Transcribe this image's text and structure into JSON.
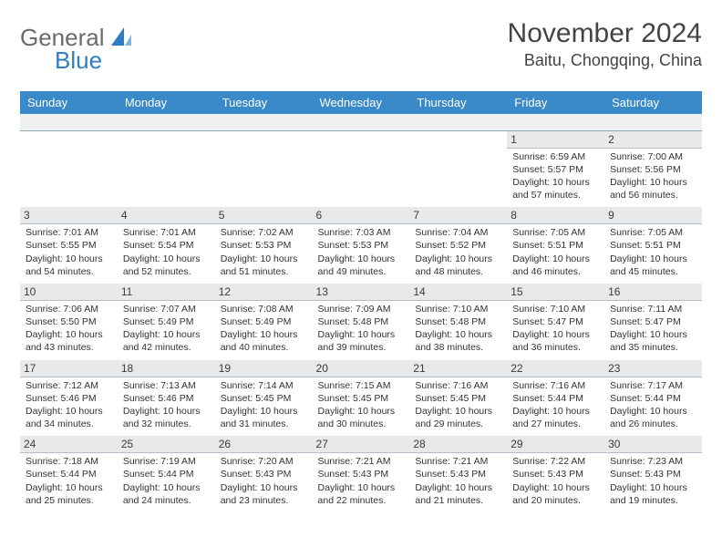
{
  "logo": {
    "general": "General",
    "blue": "Blue"
  },
  "colors": {
    "header_bg": "#3a8ac9",
    "header_fg": "#ffffff",
    "daynum_bg": "#e7e9eb",
    "spacer_bg": "#eef0f2",
    "border": "#a8b4c0",
    "logo_gray": "#6b6b6b",
    "logo_blue": "#2f7ec2",
    "text": "#333333"
  },
  "title": "November 2024",
  "location": "Baitu, Chongqing, China",
  "weekdays": [
    "Sunday",
    "Monday",
    "Tuesday",
    "Wednesday",
    "Thursday",
    "Friday",
    "Saturday"
  ],
  "weeks": [
    [
      null,
      null,
      null,
      null,
      null,
      {
        "n": "1",
        "sunrise": "Sunrise: 6:59 AM",
        "sunset": "Sunset: 5:57 PM",
        "d1": "Daylight: 10 hours",
        "d2": "and 57 minutes."
      },
      {
        "n": "2",
        "sunrise": "Sunrise: 7:00 AM",
        "sunset": "Sunset: 5:56 PM",
        "d1": "Daylight: 10 hours",
        "d2": "and 56 minutes."
      }
    ],
    [
      {
        "n": "3",
        "sunrise": "Sunrise: 7:01 AM",
        "sunset": "Sunset: 5:55 PM",
        "d1": "Daylight: 10 hours",
        "d2": "and 54 minutes."
      },
      {
        "n": "4",
        "sunrise": "Sunrise: 7:01 AM",
        "sunset": "Sunset: 5:54 PM",
        "d1": "Daylight: 10 hours",
        "d2": "and 52 minutes."
      },
      {
        "n": "5",
        "sunrise": "Sunrise: 7:02 AM",
        "sunset": "Sunset: 5:53 PM",
        "d1": "Daylight: 10 hours",
        "d2": "and 51 minutes."
      },
      {
        "n": "6",
        "sunrise": "Sunrise: 7:03 AM",
        "sunset": "Sunset: 5:53 PM",
        "d1": "Daylight: 10 hours",
        "d2": "and 49 minutes."
      },
      {
        "n": "7",
        "sunrise": "Sunrise: 7:04 AM",
        "sunset": "Sunset: 5:52 PM",
        "d1": "Daylight: 10 hours",
        "d2": "and 48 minutes."
      },
      {
        "n": "8",
        "sunrise": "Sunrise: 7:05 AM",
        "sunset": "Sunset: 5:51 PM",
        "d1": "Daylight: 10 hours",
        "d2": "and 46 minutes."
      },
      {
        "n": "9",
        "sunrise": "Sunrise: 7:05 AM",
        "sunset": "Sunset: 5:51 PM",
        "d1": "Daylight: 10 hours",
        "d2": "and 45 minutes."
      }
    ],
    [
      {
        "n": "10",
        "sunrise": "Sunrise: 7:06 AM",
        "sunset": "Sunset: 5:50 PM",
        "d1": "Daylight: 10 hours",
        "d2": "and 43 minutes."
      },
      {
        "n": "11",
        "sunrise": "Sunrise: 7:07 AM",
        "sunset": "Sunset: 5:49 PM",
        "d1": "Daylight: 10 hours",
        "d2": "and 42 minutes."
      },
      {
        "n": "12",
        "sunrise": "Sunrise: 7:08 AM",
        "sunset": "Sunset: 5:49 PM",
        "d1": "Daylight: 10 hours",
        "d2": "and 40 minutes."
      },
      {
        "n": "13",
        "sunrise": "Sunrise: 7:09 AM",
        "sunset": "Sunset: 5:48 PM",
        "d1": "Daylight: 10 hours",
        "d2": "and 39 minutes."
      },
      {
        "n": "14",
        "sunrise": "Sunrise: 7:10 AM",
        "sunset": "Sunset: 5:48 PM",
        "d1": "Daylight: 10 hours",
        "d2": "and 38 minutes."
      },
      {
        "n": "15",
        "sunrise": "Sunrise: 7:10 AM",
        "sunset": "Sunset: 5:47 PM",
        "d1": "Daylight: 10 hours",
        "d2": "and 36 minutes."
      },
      {
        "n": "16",
        "sunrise": "Sunrise: 7:11 AM",
        "sunset": "Sunset: 5:47 PM",
        "d1": "Daylight: 10 hours",
        "d2": "and 35 minutes."
      }
    ],
    [
      {
        "n": "17",
        "sunrise": "Sunrise: 7:12 AM",
        "sunset": "Sunset: 5:46 PM",
        "d1": "Daylight: 10 hours",
        "d2": "and 34 minutes."
      },
      {
        "n": "18",
        "sunrise": "Sunrise: 7:13 AM",
        "sunset": "Sunset: 5:46 PM",
        "d1": "Daylight: 10 hours",
        "d2": "and 32 minutes."
      },
      {
        "n": "19",
        "sunrise": "Sunrise: 7:14 AM",
        "sunset": "Sunset: 5:45 PM",
        "d1": "Daylight: 10 hours",
        "d2": "and 31 minutes."
      },
      {
        "n": "20",
        "sunrise": "Sunrise: 7:15 AM",
        "sunset": "Sunset: 5:45 PM",
        "d1": "Daylight: 10 hours",
        "d2": "and 30 minutes."
      },
      {
        "n": "21",
        "sunrise": "Sunrise: 7:16 AM",
        "sunset": "Sunset: 5:45 PM",
        "d1": "Daylight: 10 hours",
        "d2": "and 29 minutes."
      },
      {
        "n": "22",
        "sunrise": "Sunrise: 7:16 AM",
        "sunset": "Sunset: 5:44 PM",
        "d1": "Daylight: 10 hours",
        "d2": "and 27 minutes."
      },
      {
        "n": "23",
        "sunrise": "Sunrise: 7:17 AM",
        "sunset": "Sunset: 5:44 PM",
        "d1": "Daylight: 10 hours",
        "d2": "and 26 minutes."
      }
    ],
    [
      {
        "n": "24",
        "sunrise": "Sunrise: 7:18 AM",
        "sunset": "Sunset: 5:44 PM",
        "d1": "Daylight: 10 hours",
        "d2": "and 25 minutes."
      },
      {
        "n": "25",
        "sunrise": "Sunrise: 7:19 AM",
        "sunset": "Sunset: 5:44 PM",
        "d1": "Daylight: 10 hours",
        "d2": "and 24 minutes."
      },
      {
        "n": "26",
        "sunrise": "Sunrise: 7:20 AM",
        "sunset": "Sunset: 5:43 PM",
        "d1": "Daylight: 10 hours",
        "d2": "and 23 minutes."
      },
      {
        "n": "27",
        "sunrise": "Sunrise: 7:21 AM",
        "sunset": "Sunset: 5:43 PM",
        "d1": "Daylight: 10 hours",
        "d2": "and 22 minutes."
      },
      {
        "n": "28",
        "sunrise": "Sunrise: 7:21 AM",
        "sunset": "Sunset: 5:43 PM",
        "d1": "Daylight: 10 hours",
        "d2": "and 21 minutes."
      },
      {
        "n": "29",
        "sunrise": "Sunrise: 7:22 AM",
        "sunset": "Sunset: 5:43 PM",
        "d1": "Daylight: 10 hours",
        "d2": "and 20 minutes."
      },
      {
        "n": "30",
        "sunrise": "Sunrise: 7:23 AM",
        "sunset": "Sunset: 5:43 PM",
        "d1": "Daylight: 10 hours",
        "d2": "and 19 minutes."
      }
    ]
  ]
}
